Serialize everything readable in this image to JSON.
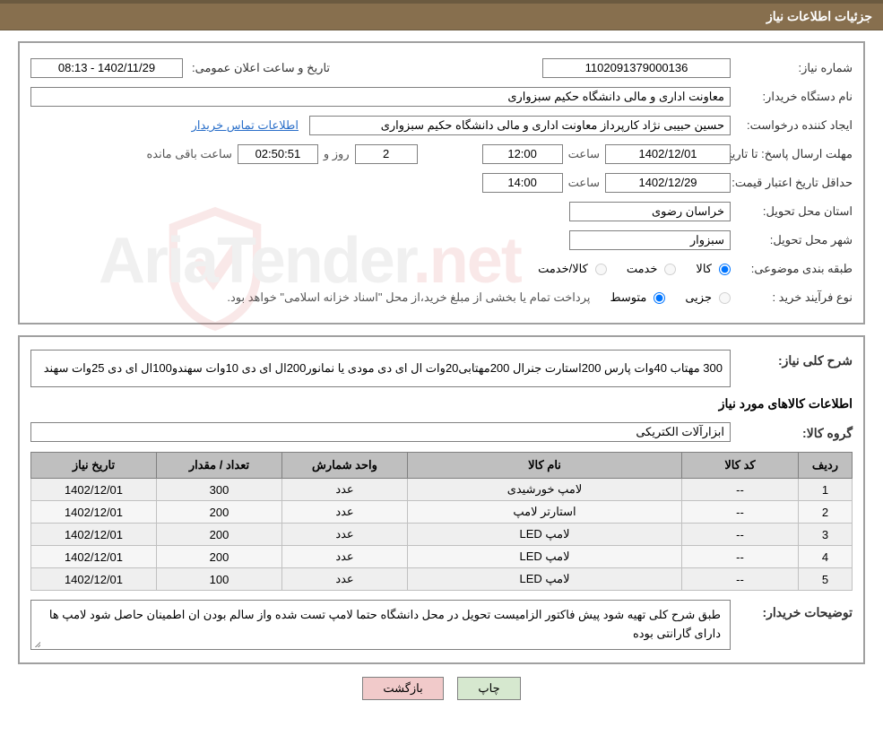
{
  "header": {
    "title": "جزئیات اطلاعات نیاز"
  },
  "info": {
    "need_no_label": "شماره نیاز:",
    "need_no": "1102091379000136",
    "ann_label": "تاریخ و ساعت اعلان عمومی:",
    "ann_value": "1402/11/29 - 08:13",
    "buyer_label": "نام دستگاه خریدار:",
    "buyer_value": "معاونت اداری و مالی دانشگاه حکیم سبزواری",
    "requester_label": "ایجاد کننده درخواست:",
    "requester_value": "حسین حبیبی نژاد کارپرداز معاونت اداری و مالی دانشگاه حکیم سبزواری",
    "contact_link": "اطلاعات تماس خریدار",
    "deadline_label": "مهلت ارسال پاسخ:",
    "to_date_label": "تا تاریخ:",
    "deadline_date": "1402/12/01",
    "hour_label": "ساعت",
    "deadline_time": "12:00",
    "days_value": "2",
    "days_and": "روز و",
    "countdown": "02:50:51",
    "remain_label": "ساعت باقی مانده",
    "validity_label": "حداقل تاریخ اعتبار قیمت:",
    "validity_date": "1402/12/29",
    "validity_time": "14:00",
    "province_label": "استان محل تحویل:",
    "province_value": "خراسان رضوی",
    "city_label": "شهر محل تحویل:",
    "city_value": "سبزوار",
    "class_label": "طبقه بندی موضوعی:",
    "class_goods": "کالا",
    "class_service": "خدمت",
    "class_both": "کالا/خدمت",
    "process_label": "نوع فرآیند خرید :",
    "process_minor": "جزیی",
    "process_medium": "متوسط",
    "process_tail": "پرداخت تمام یا بخشی از مبلغ خرید،از محل \"اسناد خزانه اسلامی\" خواهد بود."
  },
  "need": {
    "desc_label": "شرح کلی نیاز:",
    "desc_value": "300 مهتاب 40وات پارس 200استارت جنرال 200مهتابی20وات ال ای دی مودی یا نمانور200ال ای دی 10وات سهندو100ال ای دی 25وات سهند",
    "items_title": "اطلاعات کالاهای مورد نیاز",
    "group_label": "گروه کالا:",
    "group_value": "ابزارآلات الکتریکی"
  },
  "table": {
    "headers": {
      "row": "ردیف",
      "code": "کد کالا",
      "name": "نام کالا",
      "unit": "واحد شمارش",
      "qty": "تعداد / مقدار",
      "date": "تاریخ نیاز"
    },
    "rows": [
      {
        "n": "1",
        "code": "--",
        "name": "لامپ خورشیدی",
        "unit": "عدد",
        "qty": "300",
        "date": "1402/12/01"
      },
      {
        "n": "2",
        "code": "--",
        "name": "استارتر لامپ",
        "unit": "عدد",
        "qty": "200",
        "date": "1402/12/01"
      },
      {
        "n": "3",
        "code": "--",
        "name": "لامپ LED",
        "unit": "عدد",
        "qty": "200",
        "date": "1402/12/01"
      },
      {
        "n": "4",
        "code": "--",
        "name": "لامپ LED",
        "unit": "عدد",
        "qty": "200",
        "date": "1402/12/01"
      },
      {
        "n": "5",
        "code": "--",
        "name": "لامپ LED",
        "unit": "عدد",
        "qty": "100",
        "date": "1402/12/01"
      }
    ],
    "col_widths": [
      "60px",
      "130px",
      "auto",
      "140px",
      "140px",
      "140px"
    ]
  },
  "notes": {
    "label": "توضیحات خریدار:",
    "value": "طبق شرح کلی تهیه شود پیش فاکتور الزامیست  تحویل در محل دانشگاه حتما لامپ تست شده واز سالم بودن ان اطمینان حاصل شود لامپ ها دارای گارانتی بوده"
  },
  "buttons": {
    "print": "چاپ",
    "back": "بازگشت"
  },
  "watermark": {
    "brand": "AriaTender",
    "suffix": ".net"
  },
  "colors": {
    "header_bg": "#876f4e",
    "header_border": "#6b5a40",
    "table_header_bg": "#bfbfbf",
    "link": "#2a6fc9",
    "btn_print": "#d6e8cf",
    "btn_back": "#f1caca"
  }
}
